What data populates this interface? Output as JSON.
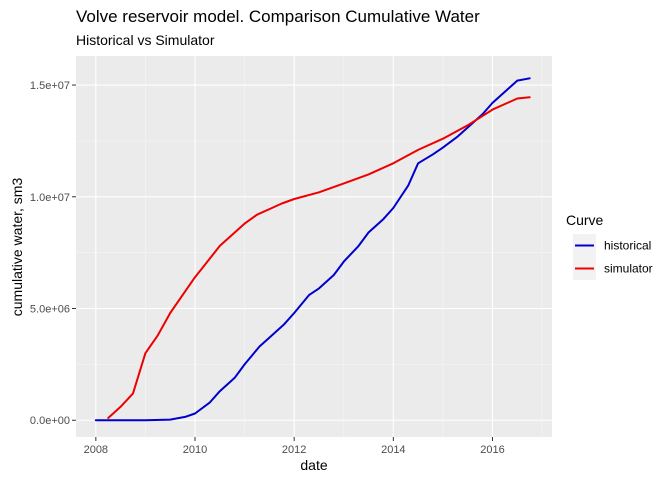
{
  "chart_data": {
    "type": "line",
    "title": "Volve reservoir model. Comparison Cumulative Water",
    "subtitle": "Historical vs Simulator",
    "xlabel": "date",
    "ylabel": "cumulative water, sm3",
    "xlim": [
      2007.6,
      2017.2
    ],
    "ylim": [
      -750000,
      16300000
    ],
    "x_ticks": [
      2008,
      2010,
      2012,
      2014,
      2016
    ],
    "x_tick_labels": [
      "2008",
      "2010",
      "2012",
      "2014",
      "2016"
    ],
    "y_ticks": [
      0,
      5000000,
      10000000,
      15000000
    ],
    "y_tick_labels": [
      "0.0e+00",
      "5.0e+06",
      "1.0e+07",
      "1.5e+07"
    ],
    "grid": true,
    "legend": {
      "title": "Curve",
      "position": "right"
    },
    "series": [
      {
        "name": "historical",
        "color": "#0000cd",
        "x": [
          2008.0,
          2008.5,
          2009.0,
          2009.5,
          2009.8,
          2010.0,
          2010.3,
          2010.5,
          2010.8,
          2011.0,
          2011.3,
          2011.5,
          2011.8,
          2012.0,
          2012.3,
          2012.5,
          2012.8,
          2013.0,
          2013.3,
          2013.5,
          2013.8,
          2014.0,
          2014.3,
          2014.5,
          2014.8,
          2015.0,
          2015.3,
          2015.5,
          2015.8,
          2016.0,
          2016.3,
          2016.5,
          2016.75
        ],
        "y": [
          0,
          0,
          0,
          30000,
          150000,
          300000,
          800000,
          1300000,
          1900000,
          2500000,
          3300000,
          3700000,
          4300000,
          4800000,
          5600000,
          5900000,
          6500000,
          7100000,
          7800000,
          8400000,
          9000000,
          9500000,
          10500000,
          11500000,
          11900000,
          12200000,
          12700000,
          13100000,
          13700000,
          14200000,
          14800000,
          15200000,
          15300000
        ]
      },
      {
        "name": "simulator",
        "color": "#ee0000",
        "x": [
          2008.25,
          2008.5,
          2008.75,
          2009.0,
          2009.25,
          2009.5,
          2009.75,
          2010.0,
          2010.25,
          2010.5,
          2010.75,
          2011.0,
          2011.25,
          2011.5,
          2011.75,
          2012.0,
          2012.5,
          2013.0,
          2013.5,
          2014.0,
          2014.5,
          2015.0,
          2015.5,
          2016.0,
          2016.5,
          2016.75
        ],
        "y": [
          100000,
          600000,
          1200000,
          3000000,
          3800000,
          4800000,
          5600000,
          6400000,
          7100000,
          7800000,
          8300000,
          8800000,
          9200000,
          9450000,
          9700000,
          9900000,
          10200000,
          10600000,
          11000000,
          11500000,
          12100000,
          12600000,
          13200000,
          13900000,
          14400000,
          14450000
        ]
      }
    ]
  }
}
